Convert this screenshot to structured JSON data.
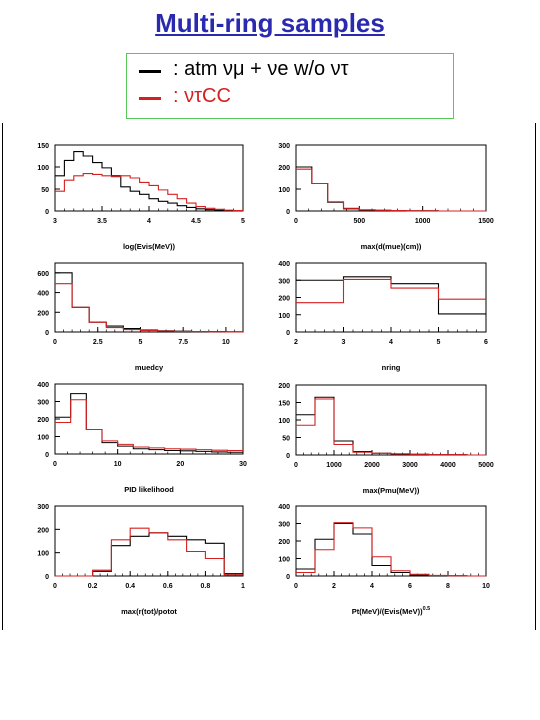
{
  "title": "Multi-ring samples",
  "legend": [
    {
      "text": ": atm  νμ + νe  w/o ντ",
      "color": "#000000"
    },
    {
      "text": ": ντCC",
      "color": "#d42020"
    }
  ],
  "colors": {
    "black": "#000000",
    "red": "#d42020"
  },
  "chart_data": [
    {
      "type": "histogram",
      "xlabel": "log(Evis(MeV))",
      "xlim": [
        3,
        5
      ],
      "ylim": [
        0,
        150
      ],
      "xticks": [
        3,
        3.5,
        4,
        4.5,
        5
      ],
      "xtick_labels": [
        "3",
        "3.5",
        "4",
        "4.5",
        "5"
      ],
      "yticks": [
        0,
        50,
        100,
        150
      ],
      "series": [
        {
          "color": "black",
          "edges": [
            3,
            3.1,
            3.2,
            3.3,
            3.4,
            3.5,
            3.6,
            3.7,
            3.8,
            3.9,
            4.0,
            4.1,
            4.2,
            4.3,
            4.4,
            4.5,
            4.6,
            4.7,
            4.8,
            4.9,
            5.0
          ],
          "values": [
            80,
            115,
            135,
            125,
            110,
            98,
            80,
            55,
            45,
            38,
            28,
            22,
            18,
            12,
            8,
            5,
            3,
            2,
            1,
            1
          ]
        },
        {
          "color": "red",
          "edges": [
            3,
            3.1,
            3.2,
            3.3,
            3.4,
            3.5,
            3.6,
            3.7,
            3.8,
            3.9,
            4.0,
            4.1,
            4.2,
            4.3,
            4.4,
            4.5,
            4.6,
            4.7,
            4.8,
            4.9,
            5.0
          ],
          "values": [
            45,
            70,
            80,
            85,
            83,
            80,
            78,
            80,
            75,
            65,
            58,
            48,
            38,
            28,
            18,
            10,
            6,
            4,
            2,
            1
          ]
        }
      ]
    },
    {
      "type": "histogram",
      "xlabel": "max(d(mue)(cm))",
      "xlim": [
        0,
        1500
      ],
      "ylim": [
        0,
        300
      ],
      "xticks": [
        0,
        500,
        1000,
        1500
      ],
      "xtick_labels": [
        "0",
        "500",
        "1000",
        "1500"
      ],
      "yticks": [
        0,
        100,
        200,
        300
      ],
      "series": [
        {
          "color": "black",
          "edges": [
            0,
            125,
            250,
            375,
            500,
            625,
            750,
            875,
            1000,
            1125,
            1250,
            1375,
            1500
          ],
          "values": [
            200,
            125,
            40,
            10,
            5,
            3,
            2,
            1,
            1,
            0,
            0,
            0
          ]
        },
        {
          "color": "red",
          "edges": [
            0,
            125,
            250,
            375,
            500,
            625,
            750,
            875,
            1000,
            1125,
            1250,
            1375,
            1500
          ],
          "values": [
            190,
            125,
            42,
            12,
            5,
            3,
            2,
            1,
            1,
            0,
            0,
            0
          ]
        }
      ]
    },
    {
      "type": "histogram",
      "xlabel": "muedcy",
      "xlim": [
        0,
        11
      ],
      "ylim": [
        0,
        700
      ],
      "xticks": [
        0,
        2.5,
        5,
        7.5,
        10
      ],
      "xtick_labels": [
        "0",
        "2.5",
        "5",
        "7.5",
        "10"
      ],
      "yticks": [
        0,
        200,
        400,
        600
      ],
      "series": [
        {
          "color": "black",
          "edges": [
            0,
            1,
            2,
            3,
            4,
            5,
            6,
            7,
            8,
            9,
            10,
            11
          ],
          "values": [
            600,
            250,
            100,
            60,
            35,
            20,
            12,
            8,
            5,
            3,
            2
          ]
        },
        {
          "color": "red",
          "edges": [
            0,
            1,
            2,
            3,
            4,
            5,
            6,
            7,
            8,
            9,
            10,
            11
          ],
          "values": [
            490,
            250,
            100,
            45,
            25,
            15,
            10,
            6,
            4,
            2,
            1
          ]
        }
      ]
    },
    {
      "type": "histogram",
      "xlabel": "nring",
      "xlim": [
        2,
        6
      ],
      "ylim": [
        0,
        400
      ],
      "xticks": [
        2,
        3,
        4,
        5,
        6
      ],
      "xtick_labels": [
        "2",
        "3",
        "4",
        "5",
        "6"
      ],
      "yticks": [
        0,
        100,
        200,
        300,
        400
      ],
      "series": [
        {
          "color": "black",
          "edges": [
            2,
            3,
            4,
            5,
            6
          ],
          "values": [
            300,
            320,
            280,
            105
          ]
        },
        {
          "color": "red",
          "edges": [
            2,
            3,
            4,
            5,
            6
          ],
          "values": [
            170,
            305,
            255,
            190
          ]
        }
      ]
    },
    {
      "type": "histogram",
      "xlabel": "PID likelihood",
      "xlim": [
        0,
        30
      ],
      "ylim": [
        0,
        400
      ],
      "xticks": [
        0,
        10,
        20,
        30
      ],
      "xtick_labels": [
        "0",
        "10",
        "20",
        "30"
      ],
      "yticks": [
        0,
        100,
        200,
        300,
        400
      ],
      "series": [
        {
          "color": "black",
          "edges": [
            0,
            2.5,
            5,
            7.5,
            10,
            12.5,
            15,
            17.5,
            20,
            22.5,
            25,
            27.5,
            30
          ],
          "values": [
            210,
            345,
            140,
            65,
            45,
            30,
            25,
            20,
            18,
            15,
            12,
            10
          ]
        },
        {
          "color": "red",
          "edges": [
            0,
            2.5,
            5,
            7.5,
            10,
            12.5,
            15,
            17.5,
            20,
            22.5,
            25,
            27.5,
            30
          ],
          "values": [
            180,
            310,
            140,
            75,
            55,
            40,
            35,
            30,
            28,
            25,
            22,
            20
          ]
        }
      ]
    },
    {
      "type": "histogram",
      "xlabel": "max(Pmu(MeV))",
      "xlim": [
        0,
        5000
      ],
      "ylim": [
        0,
        200
      ],
      "xticks": [
        0,
        1000,
        2000,
        3000,
        4000,
        5000
      ],
      "xtick_labels": [
        "0",
        "1000",
        "2000",
        "3000",
        "4000",
        "5000"
      ],
      "yticks": [
        0,
        50,
        100,
        150,
        200
      ],
      "series": [
        {
          "color": "black",
          "edges": [
            0,
            500,
            1000,
            1500,
            2000,
            2500,
            3000,
            3500,
            4000,
            4500,
            5000
          ],
          "values": [
            115,
            165,
            40,
            10,
            5,
            3,
            2,
            1,
            1,
            0
          ]
        },
        {
          "color": "red",
          "edges": [
            0,
            500,
            1000,
            1500,
            2000,
            2500,
            3000,
            3500,
            4000,
            4500,
            5000
          ],
          "values": [
            85,
            160,
            30,
            8,
            5,
            3,
            2,
            1,
            1,
            0
          ]
        }
      ]
    },
    {
      "type": "histogram",
      "xlabel": "max(r(tot)/potot",
      "xlim": [
        0,
        1
      ],
      "ylim": [
        0,
        300
      ],
      "xticks": [
        0,
        0.2,
        0.4,
        0.6,
        0.8,
        1
      ],
      "xtick_labels": [
        "0",
        "0.2",
        "0.4",
        "0.6",
        "0.8",
        "1"
      ],
      "yticks": [
        0,
        100,
        200,
        300
      ],
      "series": [
        {
          "color": "black",
          "edges": [
            0,
            0.1,
            0.2,
            0.3,
            0.4,
            0.5,
            0.6,
            0.7,
            0.8,
            0.9,
            1.0
          ],
          "values": [
            0,
            0,
            20,
            130,
            170,
            185,
            170,
            155,
            140,
            10
          ]
        },
        {
          "color": "red",
          "edges": [
            0,
            0.1,
            0.2,
            0.3,
            0.4,
            0.5,
            0.6,
            0.7,
            0.8,
            0.9,
            1.0
          ],
          "values": [
            0,
            0,
            25,
            155,
            205,
            185,
            155,
            105,
            75,
            5
          ]
        }
      ]
    },
    {
      "type": "histogram",
      "xlabel": "Pt(MeV)/(Evis(MeV))",
      "xlabel_sup": "0.5",
      "xlim": [
        0,
        10
      ],
      "ylim": [
        0,
        400
      ],
      "xticks": [
        0,
        2,
        4,
        6,
        8,
        10
      ],
      "xtick_labels": [
        "0",
        "2",
        "4",
        "6",
        "8",
        "10"
      ],
      "yticks": [
        0,
        100,
        200,
        300,
        400
      ],
      "series": [
        {
          "color": "black",
          "edges": [
            0,
            1,
            2,
            3,
            4,
            5,
            6,
            7,
            8,
            9,
            10
          ],
          "values": [
            40,
            210,
            300,
            240,
            60,
            20,
            5,
            2,
            1,
            0
          ]
        },
        {
          "color": "red",
          "edges": [
            0,
            1,
            2,
            3,
            4,
            5,
            6,
            7,
            8,
            9,
            10
          ],
          "values": [
            20,
            150,
            305,
            275,
            110,
            30,
            10,
            3,
            1,
            0
          ]
        }
      ]
    }
  ]
}
